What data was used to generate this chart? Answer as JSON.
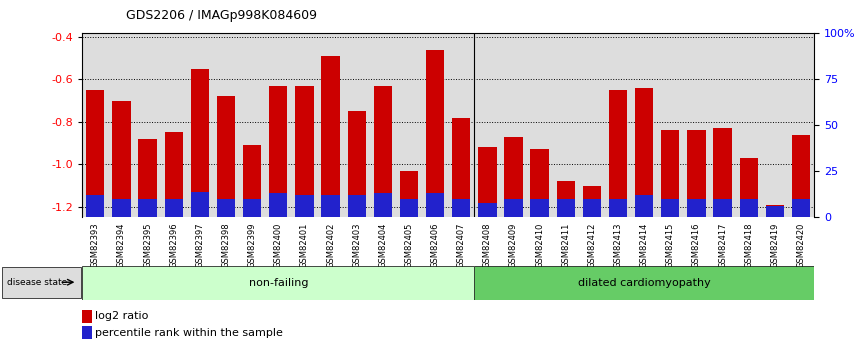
{
  "title": "GDS2206 / IMAGp998K084609",
  "samples": [
    "GSM82393",
    "GSM82394",
    "GSM82395",
    "GSM82396",
    "GSM82397",
    "GSM82398",
    "GSM82399",
    "GSM82400",
    "GSM82401",
    "GSM82402",
    "GSM82403",
    "GSM82404",
    "GSM82405",
    "GSM82406",
    "GSM82407",
    "GSM82408",
    "GSM82409",
    "GSM82410",
    "GSM82411",
    "GSM82412",
    "GSM82413",
    "GSM82414",
    "GSM82415",
    "GSM82416",
    "GSM82417",
    "GSM82418",
    "GSM82419",
    "GSM82420"
  ],
  "log2_ratio": [
    -0.65,
    -0.7,
    -0.88,
    -0.85,
    -0.55,
    -0.68,
    -0.91,
    -0.63,
    -0.63,
    -0.49,
    -0.75,
    -0.63,
    -1.03,
    -0.46,
    -0.78,
    -0.92,
    -0.87,
    -0.93,
    -1.08,
    -1.1,
    -0.65,
    -0.64,
    -0.84,
    -0.84,
    -0.83,
    -0.97,
    -1.19,
    -0.86
  ],
  "percentile_rank": [
    12,
    10,
    10,
    10,
    14,
    10,
    10,
    13,
    12,
    12,
    12,
    13,
    10,
    13,
    10,
    8,
    10,
    10,
    10,
    10,
    10,
    12,
    10,
    10,
    10,
    10,
    6,
    10
  ],
  "non_failing_count": 15,
  "dilated_count": 13,
  "ylim_left": [
    -1.25,
    -0.38
  ],
  "ylim_right": [
    0,
    100
  ],
  "yticks_left": [
    -1.2,
    -1.0,
    -0.8,
    -0.6,
    -0.4
  ],
  "yticks_right": [
    0,
    25,
    50,
    75,
    100
  ],
  "ytick_labels_right": [
    "0",
    "25",
    "50",
    "75",
    "100%"
  ],
  "bar_color": "#CC0000",
  "blue_color": "#2222CC",
  "col_bg_color": "#DDDDDD",
  "bg_color_nonfailing": "#CCFFCC",
  "bg_color_dilated": "#66CC66",
  "bg_color_label": "#CCCCCC"
}
